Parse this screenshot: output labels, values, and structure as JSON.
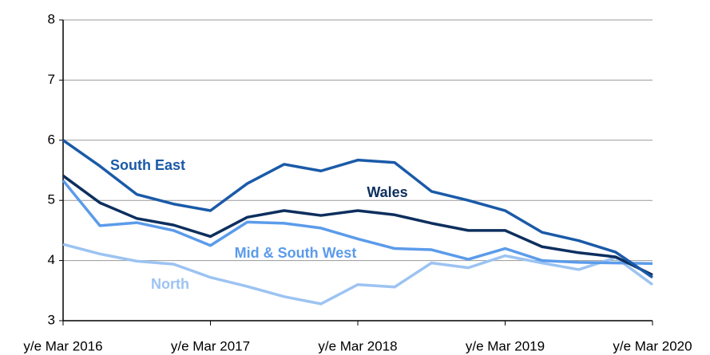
{
  "chart_data": {
    "type": "line",
    "categories": [
      "y/e Mar 2016",
      null,
      null,
      null,
      "y/e Mar 2017",
      null,
      null,
      null,
      "y/e Mar 2018",
      null,
      null,
      null,
      "y/e Mar 2019",
      null,
      null,
      null,
      "y/e Mar 2020"
    ],
    "series": [
      {
        "name": "South East",
        "color": "#1a5aa8",
        "values": [
          6.0,
          5.57,
          5.1,
          4.94,
          4.83,
          5.28,
          5.6,
          5.49,
          5.67,
          5.63,
          5.15,
          5.0,
          4.83,
          4.47,
          4.33,
          4.14,
          3.72
        ]
      },
      {
        "name": "Wales",
        "color": "#0d2f5e",
        "values": [
          5.41,
          4.96,
          4.7,
          4.59,
          4.4,
          4.72,
          4.83,
          4.75,
          4.83,
          4.76,
          4.62,
          4.5,
          4.5,
          4.23,
          4.13,
          4.06,
          3.76
        ]
      },
      {
        "name": "Mid & South West",
        "color": "#5b9bea",
        "values": [
          5.33,
          4.58,
          4.63,
          4.5,
          4.25,
          4.64,
          4.62,
          4.54,
          4.36,
          4.2,
          4.18,
          4.02,
          4.2,
          4.0,
          3.97,
          3.96,
          3.95
        ]
      },
      {
        "name": "North",
        "color": "#9cc3f2",
        "values": [
          4.27,
          4.11,
          3.99,
          3.94,
          3.72,
          3.57,
          3.4,
          3.28,
          3.6,
          3.56,
          3.96,
          3.88,
          4.08,
          3.96,
          3.85,
          4.05,
          3.6
        ]
      }
    ],
    "ylim": [
      3,
      8
    ],
    "yticks": [
      3,
      4,
      5,
      6,
      7,
      8
    ],
    "grid": true
  }
}
